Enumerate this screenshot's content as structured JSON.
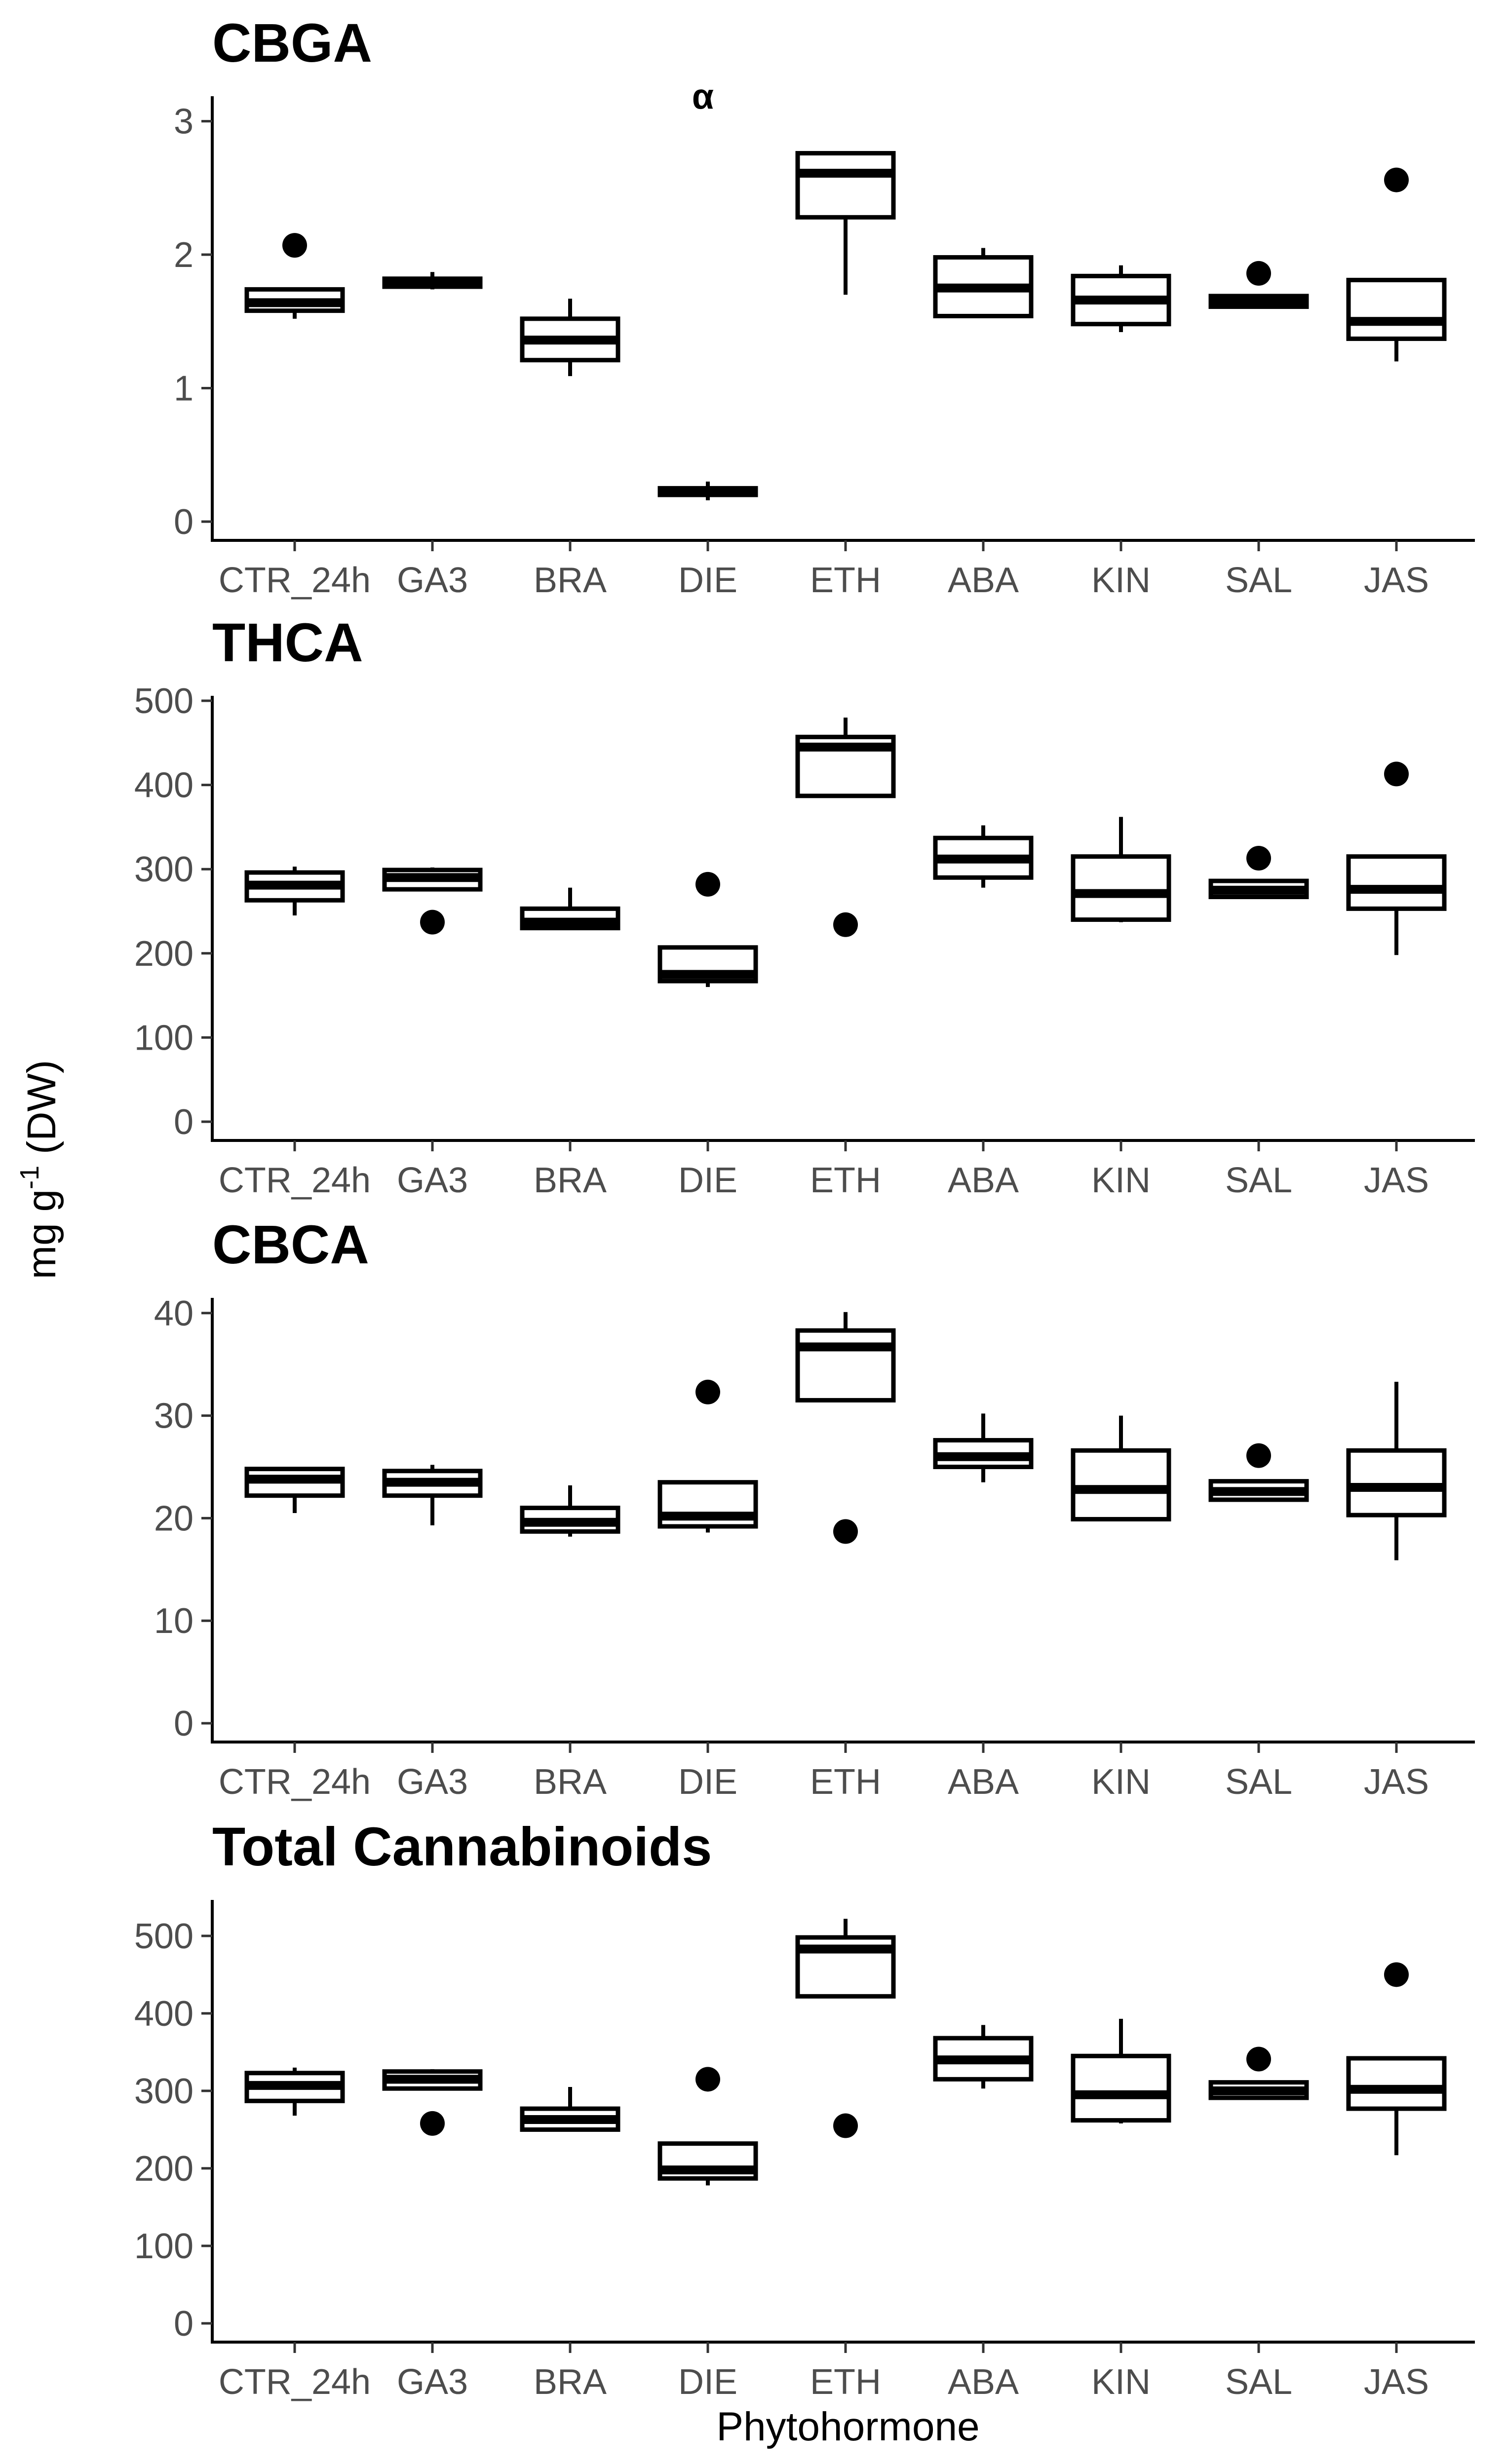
{
  "figure": {
    "ylabel_main": "mg g",
    "ylabel_sup": "-1",
    "ylabel_tail": " (DW)",
    "xlabel": "Phytohormone"
  },
  "chart_data": [
    {
      "type": "boxplot",
      "title": "CBGA",
      "xlabel": "Phytohormone",
      "ylabel": "mg g-1 (DW)",
      "categories": [
        "CTR_24h",
        "GA3",
        "BRA",
        "DIE",
        "ETH",
        "ABA",
        "KIN",
        "SAL",
        "JAS"
      ],
      "ylim": [
        0,
        3.15
      ],
      "yticks": [
        0,
        1,
        2,
        3
      ],
      "annotation": {
        "label": "α",
        "category": "DIE",
        "y": 3.0
      },
      "boxes": [
        {
          "min": 1.52,
          "q1": 1.58,
          "median": 1.64,
          "q3": 1.74,
          "max": 1.74,
          "outliers": [
            2.07
          ]
        },
        {
          "min": 1.74,
          "q1": 1.76,
          "median": 1.79,
          "q3": 1.82,
          "max": 1.87,
          "outliers": []
        },
        {
          "min": 1.09,
          "q1": 1.21,
          "median": 1.36,
          "q3": 1.52,
          "max": 1.67,
          "outliers": []
        },
        {
          "min": 0.16,
          "q1": 0.2,
          "median": 0.22,
          "q3": 0.25,
          "max": 0.3,
          "outliers": []
        },
        {
          "min": 1.7,
          "q1": 2.28,
          "median": 2.61,
          "q3": 2.76,
          "max": 2.76,
          "outliers": []
        },
        {
          "min": 1.54,
          "q1": 1.54,
          "median": 1.75,
          "q3": 1.98,
          "max": 2.05,
          "outliers": []
        },
        {
          "min": 1.42,
          "q1": 1.48,
          "median": 1.66,
          "q3": 1.84,
          "max": 1.92,
          "outliers": []
        },
        {
          "min": 1.6,
          "q1": 1.61,
          "median": 1.65,
          "q3": 1.69,
          "max": 1.69,
          "outliers": [
            1.86
          ]
        },
        {
          "min": 1.2,
          "q1": 1.37,
          "median": 1.5,
          "q3": 1.81,
          "max": 1.81,
          "outliers": [
            2.56
          ]
        }
      ]
    },
    {
      "type": "boxplot",
      "title": "THCA",
      "xlabel": "Phytohormone",
      "ylabel": "mg g-1 (DW)",
      "categories": [
        "CTR_24h",
        "GA3",
        "BRA",
        "DIE",
        "ETH",
        "ABA",
        "KIN",
        "SAL",
        "JAS"
      ],
      "ylim": [
        0,
        500
      ],
      "yticks": [
        0,
        100,
        200,
        300,
        400,
        500
      ],
      "boxes": [
        {
          "min": 245,
          "q1": 263,
          "median": 281,
          "q3": 296,
          "max": 303,
          "outliers": []
        },
        {
          "min": 276,
          "q1": 276,
          "median": 290,
          "q3": 299,
          "max": 302,
          "outliers": [
            237
          ]
        },
        {
          "min": 228,
          "q1": 230,
          "median": 237,
          "q3": 253,
          "max": 278,
          "outliers": []
        },
        {
          "min": 160,
          "q1": 167,
          "median": 175,
          "q3": 207,
          "max": 207,
          "outliers": [
            282
          ]
        },
        {
          "min": 387,
          "q1": 387,
          "median": 445,
          "q3": 457,
          "max": 480,
          "outliers": [
            234
          ]
        },
        {
          "min": 278,
          "q1": 290,
          "median": 312,
          "q3": 337,
          "max": 352,
          "outliers": []
        },
        {
          "min": 237,
          "q1": 240,
          "median": 271,
          "q3": 315,
          "max": 362,
          "outliers": []
        },
        {
          "min": 265,
          "q1": 267,
          "median": 275,
          "q3": 286,
          "max": 286,
          "outliers": [
            313
          ]
        },
        {
          "min": 198,
          "q1": 253,
          "median": 276,
          "q3": 315,
          "max": 315,
          "outliers": [
            413
          ]
        }
      ]
    },
    {
      "type": "boxplot",
      "title": "CBCA",
      "xlabel": "Phytohormone",
      "ylabel": "mg g-1 (DW)",
      "categories": [
        "CTR_24h",
        "GA3",
        "BRA",
        "DIE",
        "ETH",
        "ABA",
        "KIN",
        "SAL",
        "JAS"
      ],
      "ylim": [
        0,
        41
      ],
      "yticks": [
        0,
        10,
        20,
        30,
        40
      ],
      "boxes": [
        {
          "min": 20.5,
          "q1": 22.2,
          "median": 23.8,
          "q3": 24.8,
          "max": 24.8,
          "outliers": []
        },
        {
          "min": 19.3,
          "q1": 22.2,
          "median": 23.5,
          "q3": 24.6,
          "max": 25.2,
          "outliers": []
        },
        {
          "min": 18.2,
          "q1": 18.7,
          "median": 19.6,
          "q3": 21.0,
          "max": 23.2,
          "outliers": []
        },
        {
          "min": 18.6,
          "q1": 19.2,
          "median": 20.2,
          "q3": 23.5,
          "max": 23.5,
          "outliers": [
            32.3
          ]
        },
        {
          "min": 31.5,
          "q1": 31.5,
          "median": 36.7,
          "q3": 38.3,
          "max": 40.1,
          "outliers": [
            18.7
          ]
        },
        {
          "min": 23.5,
          "q1": 25.0,
          "median": 26.0,
          "q3": 27.6,
          "max": 30.2,
          "outliers": []
        },
        {
          "min": 19.9,
          "q1": 19.9,
          "median": 22.8,
          "q3": 26.6,
          "max": 30.0,
          "outliers": []
        },
        {
          "min": 21.7,
          "q1": 21.8,
          "median": 22.6,
          "q3": 23.6,
          "max": 23.6,
          "outliers": [
            26.1
          ]
        },
        {
          "min": 15.9,
          "q1": 20.3,
          "median": 23.0,
          "q3": 26.6,
          "max": 33.3,
          "outliers": []
        }
      ]
    },
    {
      "type": "boxplot",
      "title": "Total Cannabinoids",
      "xlabel": "Phytohormone",
      "ylabel": "mg g-1 (DW)",
      "categories": [
        "CTR_24h",
        "GA3",
        "BRA",
        "DIE",
        "ETH",
        "ABA",
        "KIN",
        "SAL",
        "JAS"
      ],
      "ylim": [
        0,
        540
      ],
      "yticks": [
        0,
        100,
        200,
        300,
        400,
        500
      ],
      "boxes": [
        {
          "min": 268,
          "q1": 287,
          "median": 307,
          "q3": 323,
          "max": 330,
          "outliers": []
        },
        {
          "min": 303,
          "q1": 303,
          "median": 315,
          "q3": 325,
          "max": 328,
          "outliers": [
            258
          ]
        },
        {
          "min": 248,
          "q1": 250,
          "median": 263,
          "q3": 277,
          "max": 305,
          "outliers": []
        },
        {
          "min": 178,
          "q1": 187,
          "median": 198,
          "q3": 232,
          "max": 232,
          "outliers": [
            315
          ]
        },
        {
          "min": 422,
          "q1": 422,
          "median": 483,
          "q3": 498,
          "max": 522,
          "outliers": [
            255
          ]
        },
        {
          "min": 303,
          "q1": 315,
          "median": 340,
          "q3": 368,
          "max": 385,
          "outliers": []
        },
        {
          "min": 258,
          "q1": 262,
          "median": 295,
          "q3": 345,
          "max": 393,
          "outliers": []
        },
        {
          "min": 290,
          "q1": 291,
          "median": 300,
          "q3": 311,
          "max": 311,
          "outliers": [
            341
          ]
        },
        {
          "min": 217,
          "q1": 277,
          "median": 302,
          "q3": 342,
          "max": 342,
          "outliers": [
            450
          ]
        }
      ]
    }
  ]
}
